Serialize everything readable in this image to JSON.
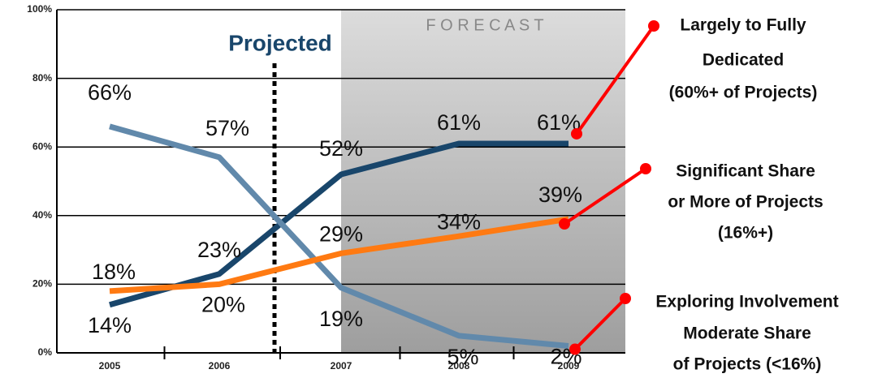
{
  "chart_data": {
    "type": "line",
    "categories": [
      "2005",
      "2006",
      "2007",
      "2008",
      "2009"
    ],
    "series": [
      {
        "name": "Largely to Fully Dedicated",
        "color": "#19466b",
        "values": [
          14,
          23,
          52,
          61,
          61
        ],
        "value_labels": [
          "14%",
          "23%",
          "52%",
          "61%",
          "61%"
        ]
      },
      {
        "name": "Exploring Involvement",
        "color": "#6189ab",
        "values": [
          66,
          57,
          19,
          5,
          2
        ],
        "value_labels": [
          "66%",
          "57%",
          "19%",
          "5%",
          "2%"
        ]
      },
      {
        "name": "Significant Share",
        "color": "#ff7a12",
        "values": [
          18,
          20,
          29,
          34,
          39
        ],
        "value_labels": [
          "18%",
          "20%",
          "29%",
          "34%",
          "39%"
        ]
      }
    ],
    "ylim": [
      0,
      100
    ],
    "yticks": [
      {
        "value": 0,
        "label": "0%"
      },
      {
        "value": 20,
        "label": "20%"
      },
      {
        "value": 40,
        "label": "40%"
      },
      {
        "value": 60,
        "label": "60%"
      },
      {
        "value": 80,
        "label": "80%"
      },
      {
        "value": 100,
        "label": "100%"
      }
    ],
    "grid": true,
    "forecast_label": "F O R E C A S T",
    "projected_label": "Projected",
    "annotations": [
      {
        "lines": [
          "Largely to Fully",
          "Dedicated",
          "(60%+ of Projects)"
        ]
      },
      {
        "lines": [
          "Significant Share",
          "or More of Projects",
          "(16%+)"
        ]
      },
      {
        "lines": [
          "Exploring Involvement",
          "Moderate Share",
          "of Projects (<16%)"
        ]
      }
    ]
  }
}
